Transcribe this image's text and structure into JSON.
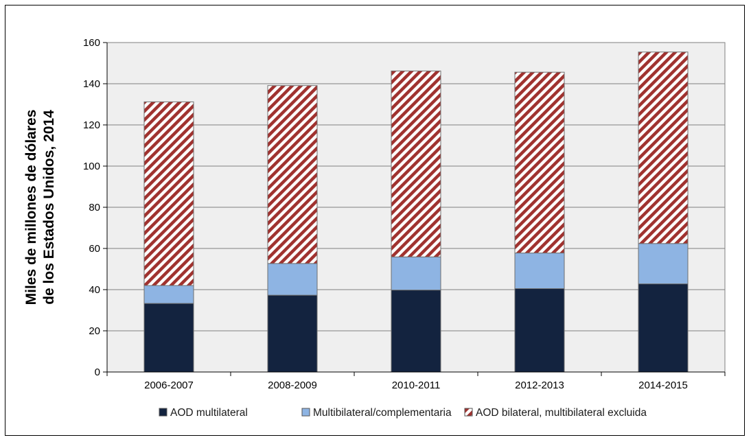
{
  "chart_data": {
    "type": "bar",
    "stacked": true,
    "categories": [
      "2006-2007",
      "2008-2009",
      "2010-2011",
      "2012-2013",
      "2014-2015"
    ],
    "series": [
      {
        "name": "AOD multilateral",
        "values": [
          33.3,
          37.3,
          39.8,
          40.5,
          42.8
        ],
        "color": "#13233f",
        "pattern": "solid"
      },
      {
        "name": "Multibilateral/complementaria",
        "values": [
          8.7,
          15.4,
          16.1,
          17.3,
          19.6
        ],
        "color": "#8eb4e3",
        "pattern": "solid"
      },
      {
        "name": "AOD bilateral, multibilateral excluida",
        "values": [
          89.2,
          86.4,
          90.3,
          87.8,
          93.0
        ],
        "color": "#a0322f",
        "pattern": "diagonal-stripes"
      }
    ],
    "ylabel": "Miles de millones de dólares de los Estados Unidos, 2014",
    "ylabel_lines": [
      "Miles de millones de dólares",
      "de los Estados Unidos, 2014"
    ],
    "xlabel": "",
    "ylim": [
      0,
      160
    ],
    "yticks": [
      0,
      20,
      40,
      60,
      80,
      100,
      120,
      140,
      160
    ],
    "grid": true,
    "plot_background": "#efefef",
    "legend_position": "bottom"
  }
}
